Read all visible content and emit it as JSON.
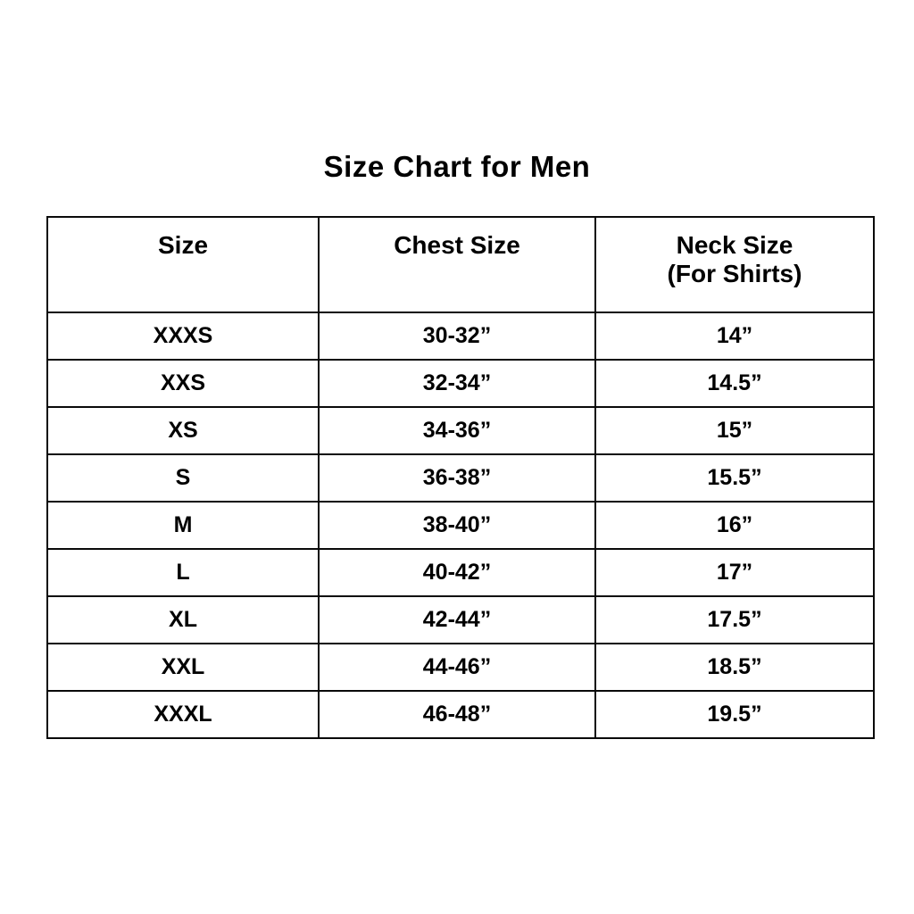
{
  "page": {
    "title": "Size Chart for Men"
  },
  "table": {
    "headers": {
      "size": "Size",
      "chest": "Chest Size",
      "neck_line1": "Neck Size",
      "neck_line2": "(For Shirts)"
    },
    "rows": [
      {
        "size": "XXXS",
        "chest": "30-32”",
        "neck": "14”"
      },
      {
        "size": "XXS",
        "chest": "32-34”",
        "neck": "14.5”"
      },
      {
        "size": "XS",
        "chest": "34-36”",
        "neck": "15”"
      },
      {
        "size": "S",
        "chest": "36-38”",
        "neck": "15.5”"
      },
      {
        "size": "M",
        "chest": "38-40”",
        "neck": "16”"
      },
      {
        "size": "L",
        "chest": "40-42”",
        "neck": "17”"
      },
      {
        "size": "XL",
        "chest": "42-44”",
        "neck": "17.5”"
      },
      {
        "size": "XXL",
        "chest": "44-46”",
        "neck": "18.5”"
      },
      {
        "size": "XXXL",
        "chest": "46-48”",
        "neck": "19.5”"
      }
    ]
  },
  "chart_data": {
    "type": "table",
    "title": "Size Chart for Men",
    "columns": [
      "Size",
      "Chest Size",
      "Neck Size (For Shirts)"
    ],
    "rows": [
      [
        "XXXS",
        "30-32”",
        "14”"
      ],
      [
        "XXS",
        "32-34”",
        "14.5”"
      ],
      [
        "XS",
        "34-36”",
        "15”"
      ],
      [
        "S",
        "36-38”",
        "15.5”"
      ],
      [
        "M",
        "38-40”",
        "16”"
      ],
      [
        "L",
        "40-42”",
        "17”"
      ],
      [
        "XL",
        "42-44”",
        "17.5”"
      ],
      [
        "XXL",
        "44-46”",
        "18.5”"
      ],
      [
        "XXXL",
        "46-48”",
        "19.5”"
      ]
    ]
  }
}
